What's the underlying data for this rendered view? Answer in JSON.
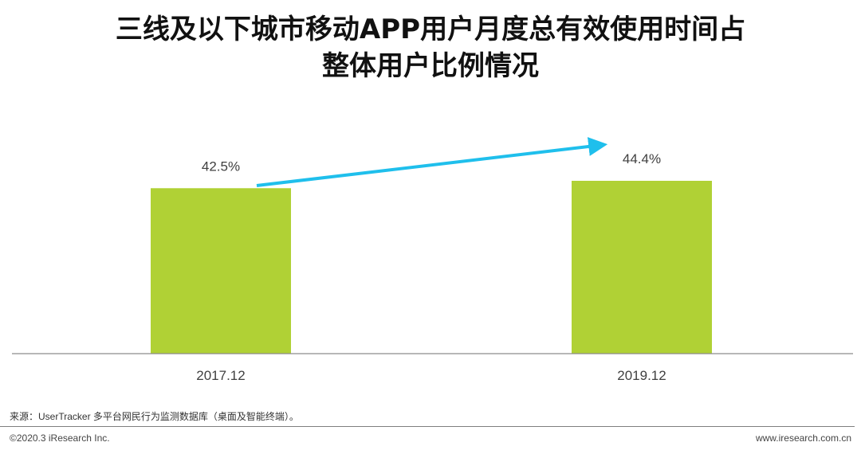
{
  "title": {
    "line1": "三线及以下城市移动APP用户月度总有效使用时间占",
    "line2": "整体用户比例情况"
  },
  "chart_data": {
    "type": "bar",
    "categories": [
      "2017.12",
      "2019.12"
    ],
    "values": [
      42.5,
      44.4
    ],
    "value_labels": [
      "42.5%",
      "44.4%"
    ],
    "unit": "%",
    "bar_color": "#b0d135",
    "arrow_color": "#1fbfec",
    "grid": false,
    "legend": "none"
  },
  "footer": {
    "source": "来源：UserTracker 多平台网民行为监测数据库（桌面及智能终端）。",
    "copyright": "©2020.3 iResearch Inc.",
    "website": "www.iresearch.com.cn"
  }
}
